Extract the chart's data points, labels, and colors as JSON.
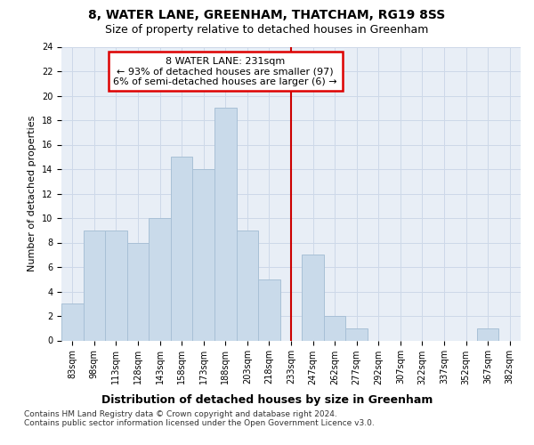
{
  "title": "8, WATER LANE, GREENHAM, THATCHAM, RG19 8SS",
  "subtitle": "Size of property relative to detached houses in Greenham",
  "xlabel": "Distribution of detached houses by size in Greenham",
  "ylabel": "Number of detached properties",
  "categories": [
    "83sqm",
    "98sqm",
    "113sqm",
    "128sqm",
    "143sqm",
    "158sqm",
    "173sqm",
    "188sqm",
    "203sqm",
    "218sqm",
    "233sqm",
    "247sqm",
    "262sqm",
    "277sqm",
    "292sqm",
    "307sqm",
    "322sqm",
    "337sqm",
    "352sqm",
    "367sqm",
    "382sqm"
  ],
  "values": [
    3,
    9,
    9,
    8,
    10,
    15,
    14,
    19,
    9,
    5,
    0,
    7,
    2,
    1,
    0,
    0,
    0,
    0,
    0,
    1,
    0
  ],
  "bar_color": "#c9daea",
  "bar_edgecolor": "#a8c0d6",
  "bar_width": 1.0,
  "property_line_x": 10,
  "annotation_title": "8 WATER LANE: 231sqm",
  "annotation_line1": "← 93% of detached houses are smaller (97)",
  "annotation_line2": "6% of semi-detached houses are larger (6) →",
  "annotation_box_color": "#dd0000",
  "vline_color": "#cc0000",
  "ylim": [
    0,
    24
  ],
  "yticks": [
    0,
    2,
    4,
    6,
    8,
    10,
    12,
    14,
    16,
    18,
    20,
    22,
    24
  ],
  "grid_color": "#cdd8e8",
  "background_color": "#e8eef6",
  "footer_line1": "Contains HM Land Registry data © Crown copyright and database right 2024.",
  "footer_line2": "Contains public sector information licensed under the Open Government Licence v3.0.",
  "title_fontsize": 10,
  "subtitle_fontsize": 9,
  "xlabel_fontsize": 9,
  "ylabel_fontsize": 8,
  "tick_fontsize": 7,
  "annot_fontsize": 8,
  "footer_fontsize": 6.5
}
